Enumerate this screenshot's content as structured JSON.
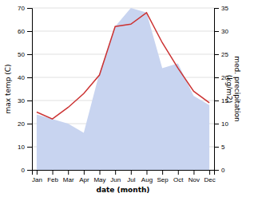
{
  "chart_data": {
    "type": "line",
    "categories": [
      "Jan",
      "Feb",
      "Mar",
      "Apr",
      "May",
      "Jun",
      "Jul",
      "Aug",
      "Sep",
      "Oct",
      "Nov",
      "Dec"
    ],
    "xlabel": "date (month)",
    "ylabel": "max temp (C)",
    "y2label": "med. precipitation\n(kg/m2)",
    "series": [
      {
        "type": "area",
        "axis": "y2",
        "color": "#c8d4f0",
        "values": [
          12,
          11,
          10,
          8,
          21,
          31,
          35,
          34,
          22,
          23,
          16,
          14
        ]
      },
      {
        "type": "line",
        "color": "#cc3333",
        "values": [
          25,
          22,
          27,
          33,
          41,
          62,
          63,
          68,
          55,
          44,
          34,
          29
        ]
      }
    ],
    "ylim": [
      0,
      70
    ],
    "yticks": [
      0,
      10,
      20,
      30,
      40,
      50,
      60,
      70
    ],
    "y2lim": [
      0,
      35
    ],
    "y2ticks": [
      0,
      5,
      10,
      15,
      20,
      25,
      30,
      35
    ],
    "grid": true
  }
}
